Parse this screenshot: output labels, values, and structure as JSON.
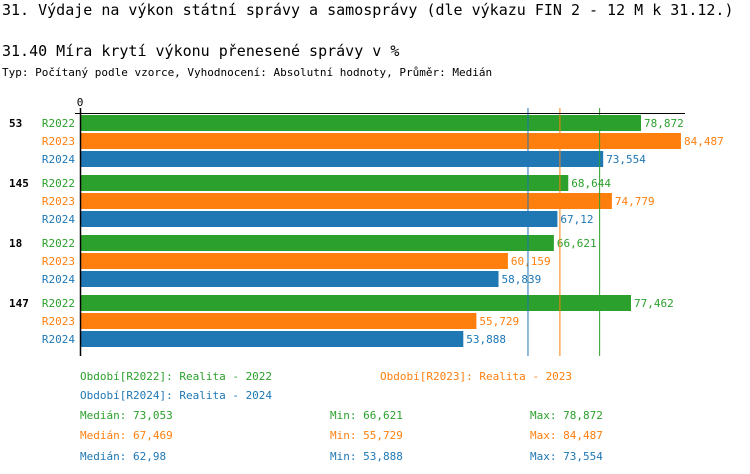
{
  "title": "31. Výdaje na výkon státní správy a samosprávy (dle výkazu FIN 2 - 12 M k 31.12.)",
  "subtitle": "31.40 Míra krytí výkonu přenesené správy v %",
  "info": "Typ: Počítaný podle vzorce, Vyhodnocení: Absolutní hodnoty, Průměr: Medián",
  "colors": {
    "R2022": "#2ca02c",
    "R2023": "#ff7f0e",
    "R2024": "#1f77b4"
  },
  "chart_data": {
    "type": "bar",
    "orientation": "horizontal",
    "x_tick_labels": [
      "0"
    ],
    "xlim": [
      0,
      85
    ],
    "categories": [
      "53",
      "145",
      "18",
      "147"
    ],
    "series": [
      {
        "name": "R2022",
        "values": [
          78.872,
          68.644,
          66.621,
          77.462
        ],
        "labels": [
          "78,872",
          "68,644",
          "66,621",
          "77,462"
        ]
      },
      {
        "name": "R2023",
        "values": [
          84.487,
          74.779,
          60.159,
          55.729
        ],
        "labels": [
          "84,487",
          "74,779",
          "60,159",
          "55,729"
        ]
      },
      {
        "name": "R2024",
        "values": [
          73.554,
          67.12,
          58.839,
          53.888
        ],
        "labels": [
          "73,554",
          "67,12",
          "58,839",
          "53,888"
        ]
      }
    ],
    "median_lines": {
      "R2022": 73.053,
      "R2023": 67.469,
      "R2024": 62.98
    }
  },
  "legend": [
    "Období[R2022]: Realita - 2022",
    "Období[R2023]: Realita - 2023",
    "Období[R2024]: Realita - 2024"
  ],
  "stats": [
    {
      "median": "Medián: 73,053",
      "min": "Min: 66,621",
      "max": "Max: 78,872"
    },
    {
      "median": "Medián: 67,469",
      "min": "Min: 55,729",
      "max": "Max: 84,487"
    },
    {
      "median": "Medián: 62,98",
      "min": "Min: 53,888",
      "max": "Max: 73,554"
    }
  ]
}
